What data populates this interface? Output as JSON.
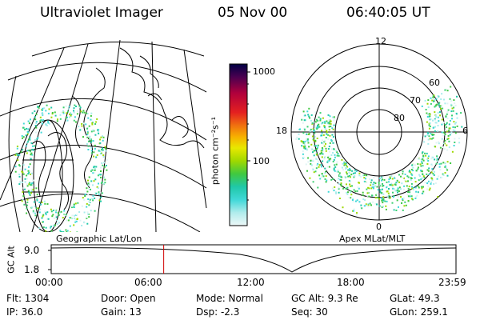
{
  "header": {
    "instrument": "Ultraviolet Imager",
    "date": "05 Nov 00",
    "time": "06:40:05 UT"
  },
  "left_panel": {
    "caption": "Geographic Lat/Lon"
  },
  "right_panel": {
    "caption": "Apex MLat/MLT",
    "mlt_labels": {
      "top": "12",
      "bottom": "0",
      "left": "18",
      "right": "6"
    },
    "lat_labels": [
      "60",
      "70",
      "80"
    ]
  },
  "colorbar": {
    "unit_label": "photon cm⁻²s⁻¹",
    "tick_labels": [
      "1000",
      "100"
    ],
    "colors": [
      "#000066",
      "#7a0050",
      "#b8003c",
      "#e41c1c",
      "#f06a10",
      "#f7a800",
      "#eaea00",
      "#9ed800",
      "#3cc83c",
      "#20c8a0",
      "#40d8d8",
      "#a8ecec",
      "#e8f8f8"
    ]
  },
  "timeline": {
    "y_axis_label": "GC Alt",
    "y_ticks": [
      "9.0",
      "1.8"
    ],
    "x_ticks": [
      "00:00",
      "06:00",
      "12:00",
      "18:00",
      "23:59"
    ],
    "current_time_hours": 6.67
  },
  "info": {
    "flt": "Flt: 1304",
    "ip": "IP: 36.0",
    "door": "Door: Open",
    "gain": "Gain: 13",
    "mode": "Mode: Normal",
    "dsp": "Dsp:     -2.3",
    "gcalt": "GC Alt: 9.3 Re",
    "seq": "Seq: 30",
    "glat": "GLat:   49.3",
    "glon": "GLon: 259.1"
  }
}
